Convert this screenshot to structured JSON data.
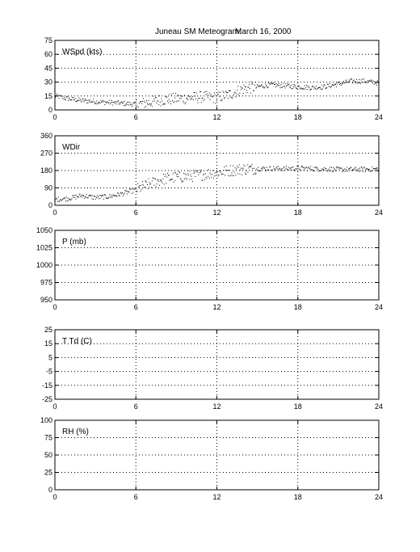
{
  "title_station": "Juneau SM Meteogram:",
  "title_date": "March 16, 2000",
  "chart_data": [
    {
      "type": "scatter",
      "label": "WSpd (kts)",
      "xlim": [
        0,
        24
      ],
      "ylim": [
        0,
        75
      ],
      "xticks": [
        0,
        6,
        12,
        18,
        24
      ],
      "yticks": [
        0,
        15,
        30,
        45,
        60,
        75
      ],
      "grid": true,
      "series": [
        {
          "x": [
            0,
            1,
            2,
            3,
            4,
            5,
            6,
            7,
            8,
            9,
            10,
            11,
            12,
            13,
            14,
            15,
            16,
            17,
            18,
            19,
            20,
            21,
            22,
            23,
            24
          ],
          "values": [
            15,
            12,
            10,
            9,
            8,
            7,
            6,
            8,
            11,
            12,
            13,
            14,
            13,
            17,
            23,
            25,
            27,
            26,
            25,
            24,
            25,
            28,
            31,
            31,
            29
          ]
        }
      ]
    },
    {
      "type": "scatter",
      "label": "WDir",
      "xlim": [
        0,
        24
      ],
      "ylim": [
        0,
        360
      ],
      "xticks": [
        0,
        6,
        12,
        18,
        24
      ],
      "yticks": [
        0,
        90,
        180,
        270,
        360
      ],
      "grid": true,
      "series": [
        {
          "x": [
            0,
            1,
            2,
            3,
            4,
            5,
            6,
            7,
            8,
            9,
            10,
            11,
            12,
            13,
            14,
            15,
            16,
            17,
            18,
            19,
            20,
            21,
            22,
            23,
            24
          ],
          "values": [
            30,
            35,
            50,
            40,
            45,
            60,
            80,
            110,
            135,
            145,
            150,
            160,
            170,
            180,
            188,
            190,
            190,
            190,
            192,
            190,
            188,
            185,
            185,
            186,
            188
          ]
        }
      ]
    },
    {
      "type": "scatter",
      "label": "P (mb)",
      "xlim": [
        0,
        24
      ],
      "ylim": [
        950,
        1050
      ],
      "xticks": [
        0,
        6,
        12,
        18,
        24
      ],
      "yticks": [
        950,
        975,
        1000,
        1025,
        1050
      ],
      "grid": true,
      "series": []
    },
    {
      "type": "scatter",
      "label": "T Td (C)",
      "xlim": [
        0,
        24
      ],
      "ylim": [
        -25,
        25
      ],
      "xticks": [
        0,
        6,
        12,
        18,
        24
      ],
      "yticks": [
        -25,
        -15,
        -5,
        5,
        15,
        25
      ],
      "grid": true,
      "series": []
    },
    {
      "type": "scatter",
      "label": "RH (%)",
      "xlim": [
        0,
        24
      ],
      "ylim": [
        0,
        100
      ],
      "xticks": [
        0,
        6,
        12,
        18,
        24
      ],
      "yticks": [
        0,
        25,
        50,
        75,
        100
      ],
      "grid": true,
      "series": []
    }
  ]
}
